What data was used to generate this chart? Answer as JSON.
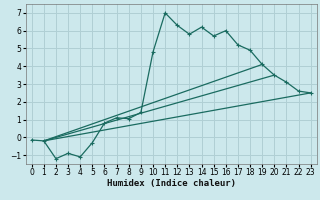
{
  "title": "",
  "xlabel": "Humidex (Indice chaleur)",
  "bg_color": "#cce8ec",
  "grid_color": "#b0cfd4",
  "line_color": "#1a6b60",
  "line1_x": [
    0,
    1,
    2,
    3,
    4,
    5,
    6,
    7,
    8,
    9,
    10,
    11,
    12,
    13,
    14,
    15,
    16,
    17,
    18,
    19,
    20,
    21,
    22,
    23
  ],
  "line1_y": [
    -0.15,
    -0.2,
    -1.2,
    -0.9,
    -1.1,
    -0.3,
    0.8,
    1.1,
    1.05,
    1.4,
    4.8,
    7.0,
    6.3,
    5.8,
    6.2,
    5.7,
    6.0,
    5.2,
    4.9,
    4.1,
    3.5,
    3.1,
    2.6,
    2.5
  ],
  "line2_x": [
    1,
    23
  ],
  "line2_y": [
    -0.2,
    2.5
  ],
  "line3_x": [
    1,
    20
  ],
  "line3_y": [
    -0.2,
    3.5
  ],
  "line4_x": [
    1,
    19
  ],
  "line4_y": [
    -0.2,
    4.1
  ],
  "xlim": [
    -0.5,
    23.5
  ],
  "ylim": [
    -1.5,
    7.5
  ],
  "xticks": [
    0,
    1,
    2,
    3,
    4,
    5,
    6,
    7,
    8,
    9,
    10,
    11,
    12,
    13,
    14,
    15,
    16,
    17,
    18,
    19,
    20,
    21,
    22,
    23
  ],
  "yticks": [
    -1,
    0,
    1,
    2,
    3,
    4,
    5,
    6,
    7
  ],
  "xlabel_fontsize": 6.5,
  "tick_fontsize": 5.5
}
